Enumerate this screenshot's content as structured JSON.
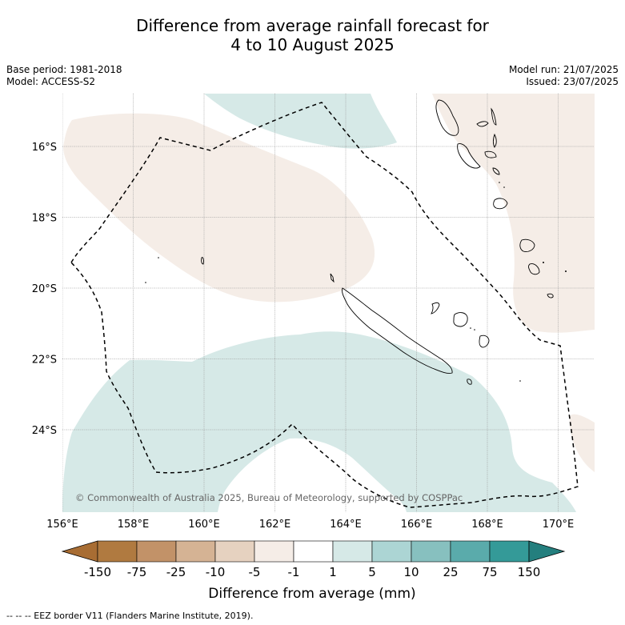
{
  "title_line1": "Difference from average rainfall forecast for",
  "title_line2": "4 to 10 August 2025",
  "base_period": "Base period: 1981-2018",
  "model": "Model: ACCESS-S2",
  "model_run": "Model run: 21/07/2025",
  "issued": "Issued: 23/07/2025",
  "copyright": "© Commonwealth of Australia 2025, Bureau of Meteorology, supported by COSPPac",
  "colorbar_label": "Difference from average (mm)",
  "footer": "--  --  -- EEZ border V11 (Flanders Marine Institute, 2019).",
  "colors": {
    "dry_light": "#f5ede7",
    "wet_light": "#d6e9e7"
  },
  "map": {
    "lon_labels": [
      "156°E",
      "158°E",
      "160°E",
      "162°E",
      "164°E",
      "166°E",
      "168°E",
      "170°E"
    ],
    "lat_labels": [
      "16°S",
      "18°S",
      "20°S",
      "22°S",
      "24°S"
    ]
  },
  "colorbar": {
    "tick_labels": [
      "-150",
      "-75",
      "-25",
      "-10",
      "-5",
      "-1",
      "1",
      "5",
      "10",
      "25",
      "75",
      "150"
    ],
    "colors": [
      "#a86d33",
      "#b07a40",
      "#c29268",
      "#d5b394",
      "#e6d2c0",
      "#f5ede7",
      "#ffffff",
      "#d6e9e7",
      "#acd5d4",
      "#87c0bf",
      "#5aabab",
      "#349a98",
      "#247f7e"
    ]
  }
}
